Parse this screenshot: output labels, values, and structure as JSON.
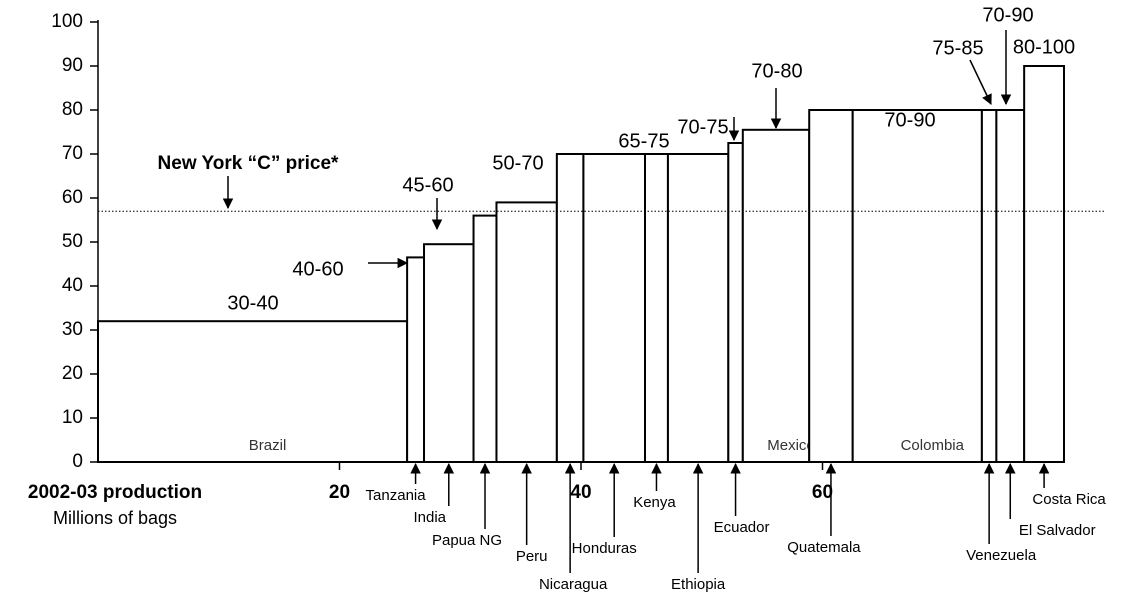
{
  "chart_data": {
    "type": "variable-width-bar",
    "categories": [
      "Brazil",
      "Tanzania",
      "India",
      "Papua NG",
      "Peru",
      "Nicaragua",
      "Honduras",
      "Kenya",
      "Ethiopia",
      "Ecuador",
      "Mexico",
      "Quatemala",
      "Colombia",
      "Venezuela",
      "El Salvador",
      "Costa Rica"
    ],
    "widths": [
      25.6,
      1.4,
      4.1,
      1.9,
      5.0,
      2.2,
      5.1,
      1.9,
      5.0,
      1.2,
      5.5,
      3.6,
      10.7,
      1.2,
      2.3,
      3.3
    ],
    "values": [
      32,
      46.5,
      49.5,
      56,
      59,
      70,
      70,
      70,
      70,
      72.5,
      75.5,
      80,
      80,
      80,
      80,
      90
    ],
    "xlim": [
      0,
      80
    ],
    "xticks": [
      20,
      40,
      60
    ],
    "ylim": [
      0,
      100
    ],
    "yticks": [
      0,
      10,
      20,
      30,
      40,
      50,
      60,
      70,
      80,
      90,
      100
    ],
    "x_title": "2002-03 production",
    "x_subtitle": "Millions of bags",
    "reference_line": {
      "label": "New York “C” price*",
      "value": 57
    },
    "annotations": [
      "30-40",
      "40-60",
      "45-60",
      "50-70",
      "65-75",
      "70-75",
      "70-80",
      "70-90",
      "75-85",
      "70-90",
      "80-100"
    ]
  }
}
